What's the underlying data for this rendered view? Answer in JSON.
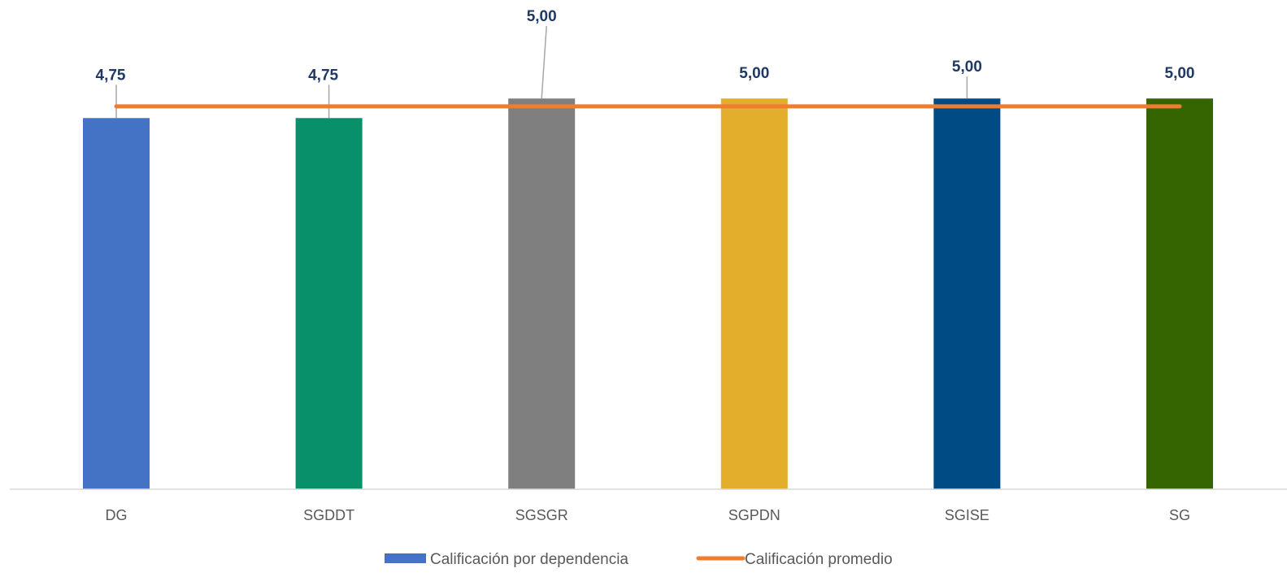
{
  "chart_data": {
    "type": "bar",
    "title": "",
    "xlabel": "",
    "ylabel": "",
    "ylim": [
      0,
      5.2
    ],
    "grid": false,
    "legend_position": "bottom",
    "categories": [
      "DG",
      "SGDDT",
      "SGSGR",
      "SGPDN",
      "SGISE",
      "SG"
    ],
    "series": [
      {
        "name": "Calificación por dependencia",
        "type": "bar",
        "values": [
          4.75,
          4.75,
          5.0,
          5.0,
          5.0,
          5.0
        ],
        "data_labels": [
          "4,75",
          "4,75",
          "5,00",
          "5,00",
          "5,00",
          "5,00"
        ],
        "colors": [
          "#4472c4",
          "#07906a",
          "#7f7f7f",
          "#e3ae2b",
          "#014b84",
          "#346500"
        ],
        "legend_color": "#4472c4"
      },
      {
        "name": "Calificación promedio",
        "type": "line",
        "values": [
          4.9,
          4.9,
          4.9,
          4.9,
          4.9,
          4.9
        ],
        "color": "#ed7d31"
      }
    ]
  }
}
